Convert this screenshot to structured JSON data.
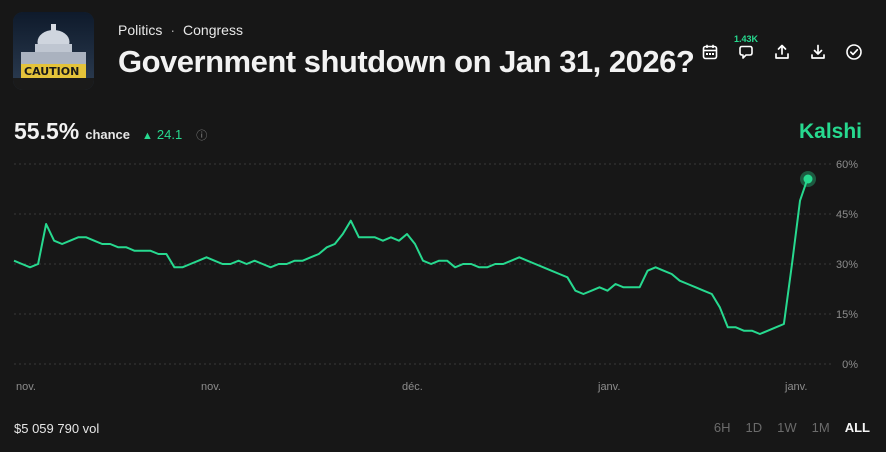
{
  "breadcrumb": {
    "category": "Politics",
    "separator": "·",
    "subcategory": "Congress"
  },
  "market": {
    "title": "Government shutdown on Jan 31, 2026?",
    "thumbnail_text": "CAUTION"
  },
  "actions": [
    {
      "icon": "calendar-icon"
    },
    {
      "icon": "comment-icon",
      "count": "1.43K"
    },
    {
      "icon": "share-icon"
    },
    {
      "icon": "download-icon"
    },
    {
      "icon": "check-circle-icon"
    }
  ],
  "stats": {
    "chance": "55.5%",
    "chance_label": "chance",
    "delta": "24.1",
    "delta_direction": "up"
  },
  "brand": {
    "name": "Kalshi",
    "color": "#27d98f"
  },
  "volume": "$5 059 790 vol",
  "time_ranges": [
    "6H",
    "1D",
    "1W",
    "1M",
    "ALL"
  ],
  "selected_range": "ALL",
  "chart_data": {
    "type": "line",
    "title": "",
    "xlabel": "",
    "ylabel": "",
    "ylim": [
      0,
      60
    ],
    "y_ticks": [
      "0%",
      "15%",
      "30%",
      "45%",
      "60%"
    ],
    "x_ticks": [
      "nov.",
      "nov.",
      "déc.",
      "janv.",
      "janv."
    ],
    "grid": true,
    "line_color": "#27d98f",
    "series": [
      {
        "values": [
          31,
          30,
          29,
          30,
          42,
          37,
          36,
          37,
          38,
          38,
          37,
          36,
          36,
          35,
          35,
          34,
          34,
          34,
          33,
          33,
          29,
          29,
          30,
          31,
          32,
          31,
          30,
          30,
          31,
          30,
          31,
          30,
          29,
          30,
          30,
          31,
          31,
          32,
          33,
          35,
          36,
          39,
          43,
          38,
          38,
          38,
          37,
          38,
          37,
          39,
          36,
          31,
          30,
          31,
          31,
          29,
          30,
          30,
          29,
          29,
          30,
          30,
          31,
          32,
          31,
          30,
          29,
          28,
          27,
          26,
          22,
          21,
          22,
          23,
          22,
          24,
          23,
          23,
          23,
          28,
          29,
          28,
          27,
          25,
          24,
          23,
          22,
          21,
          17,
          11,
          11,
          10,
          10,
          9,
          10,
          11,
          12,
          30,
          49,
          56
        ]
      }
    ],
    "end_value": 55.5
  }
}
